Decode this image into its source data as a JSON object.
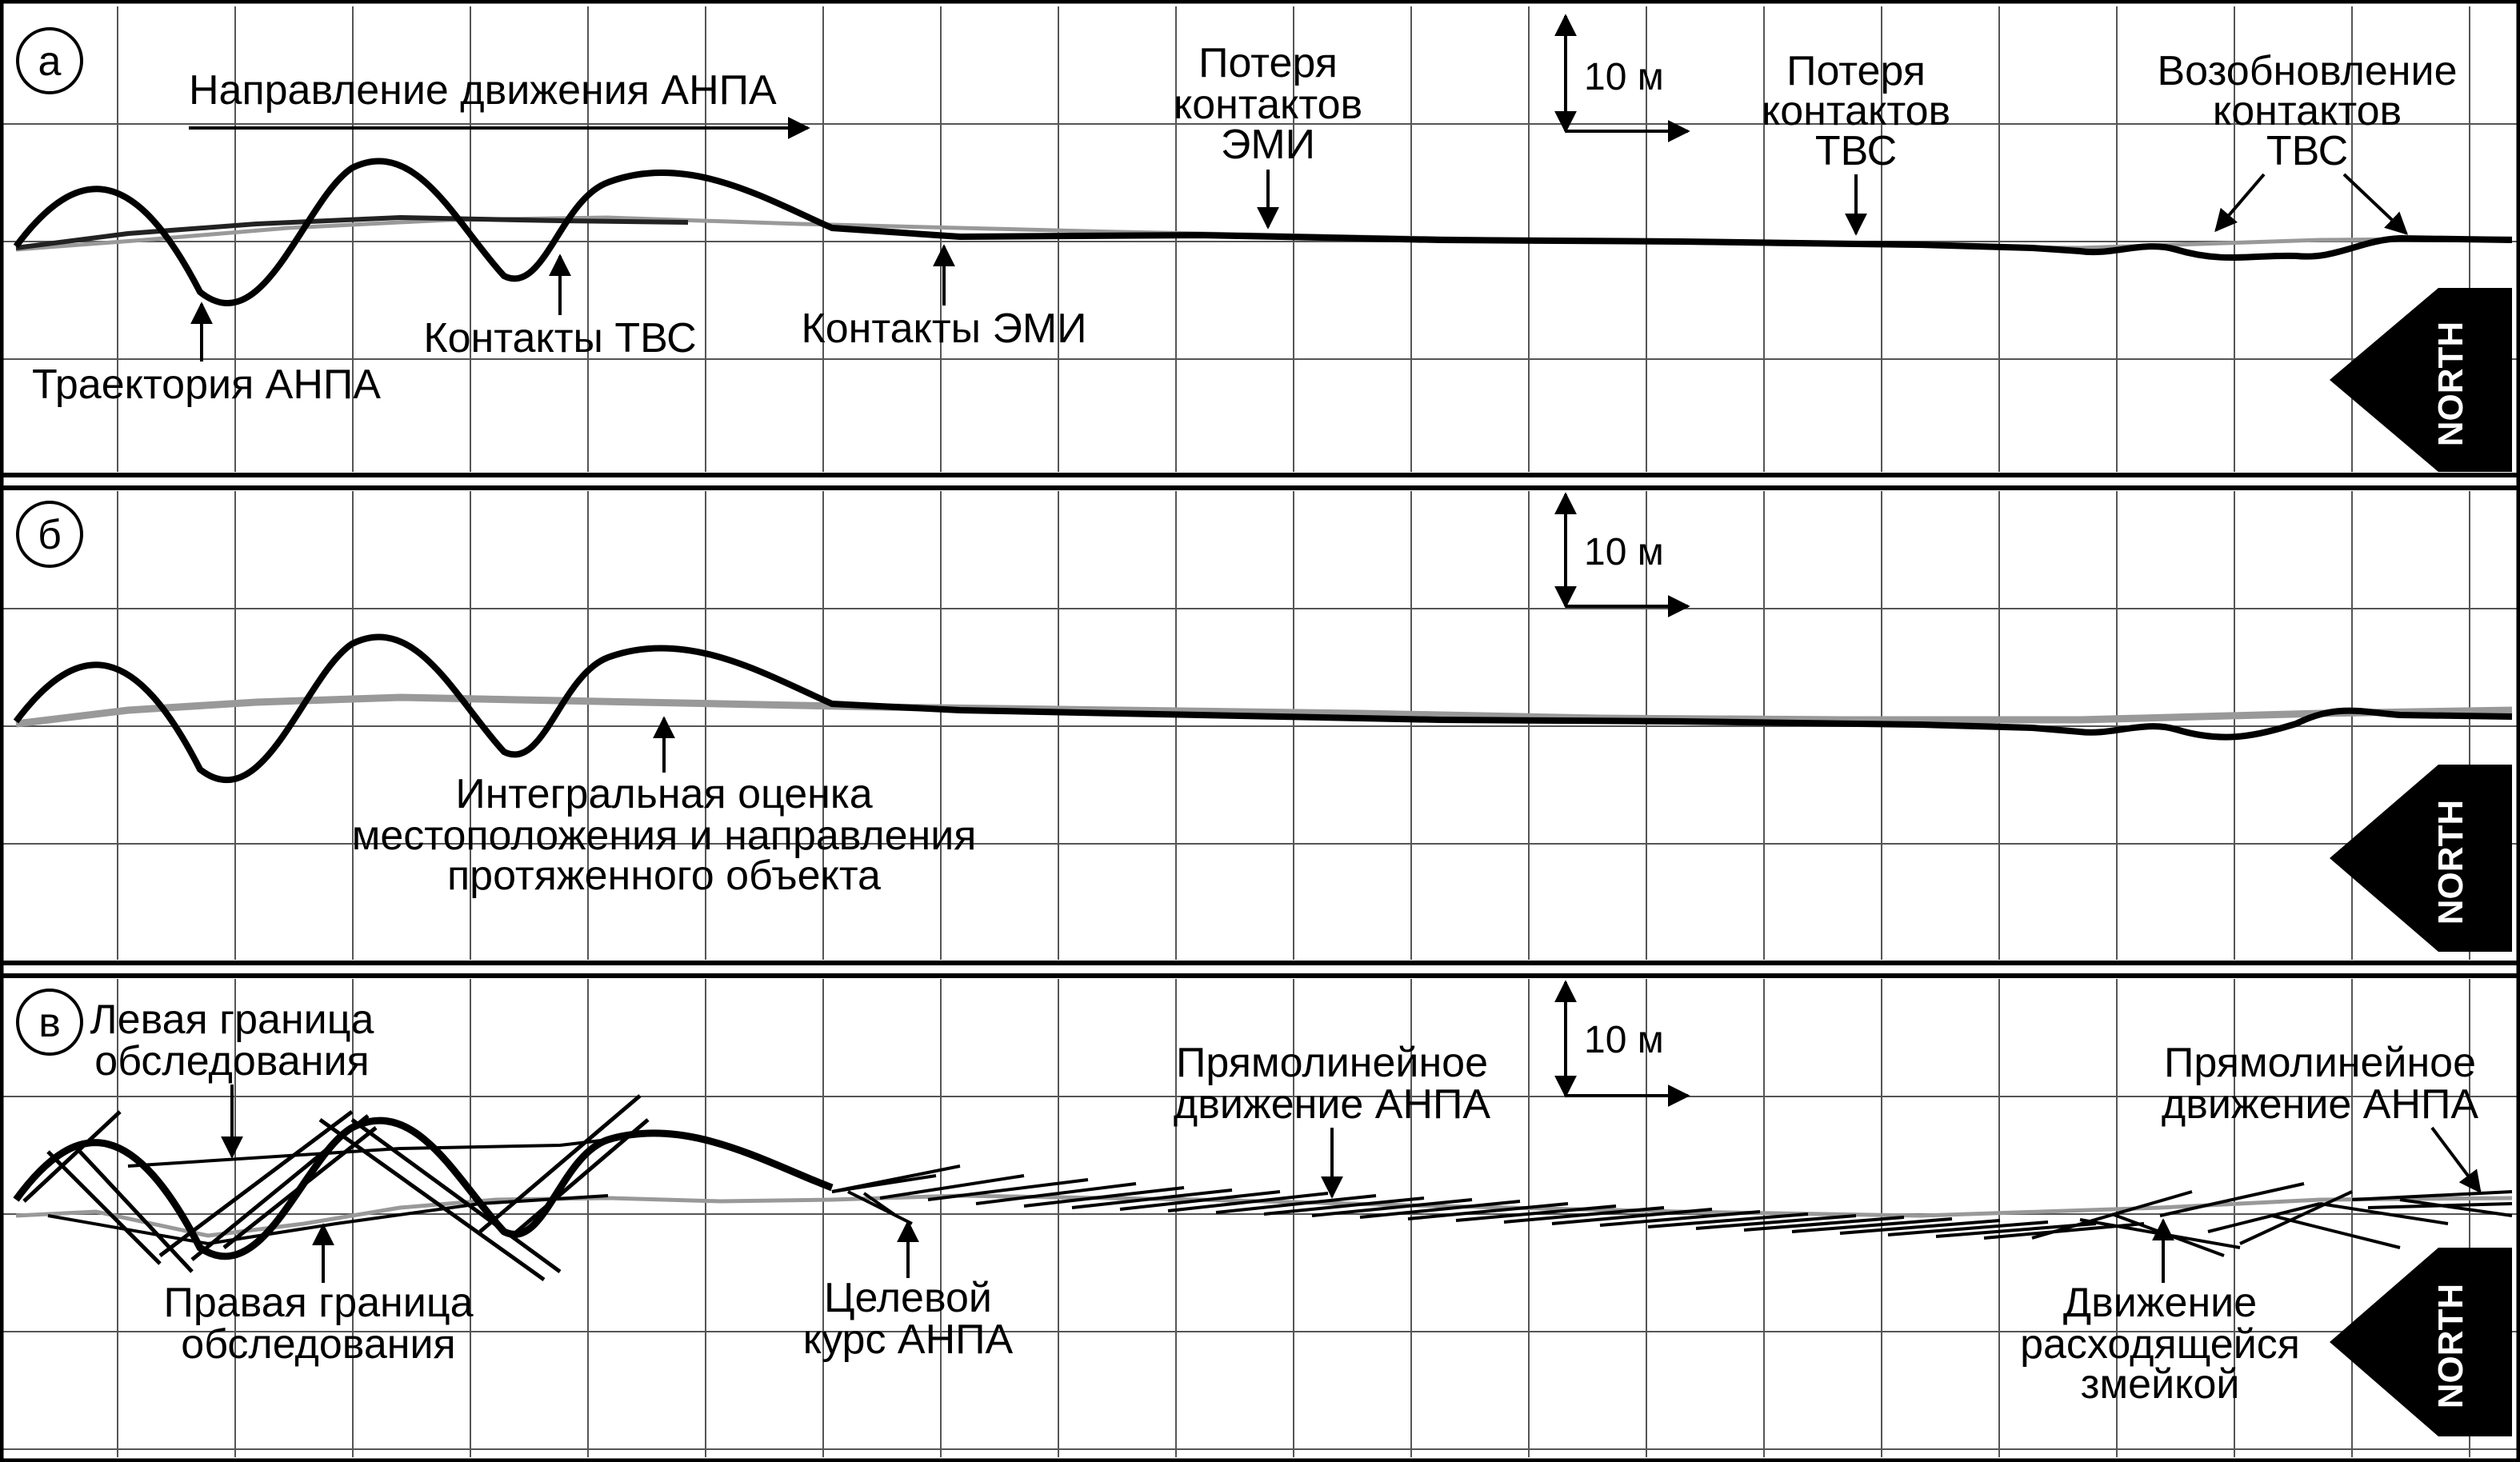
{
  "north_label": "NORTH",
  "scale_label": "10 м",
  "panels": [
    {
      "letter": "а",
      "labels": {
        "direction": "Направление движения АНПА",
        "emi_loss_1": "Потеря",
        "emi_loss_2": "контактов",
        "emi_loss_3": "ЭМИ",
        "tvs_loss_1": "Потеря",
        "tvs_loss_2": "контактов",
        "tvs_loss_3": "ТВС",
        "resume_1": "Возобновление",
        "resume_2": "контактов",
        "resume_3": "ТВС",
        "tvs_contacts": "Контакты ТВС",
        "emi_contacts": "Контакты ЭМИ",
        "trajectory": "Траектория АНПА"
      }
    },
    {
      "letter": "б",
      "labels": {
        "estimate_1": "Интегральная оценка",
        "estimate_2": "местоположения и направления",
        "estimate_3": "протяженного объекта"
      }
    },
    {
      "letter": "в",
      "labels": {
        "left_1": "Левая граница",
        "left_2": "обследования",
        "right_1": "Правая граница",
        "right_2": "обследования",
        "target_1": "Целевой",
        "target_2": "курс АНПА",
        "straight_a_1": "Прямолинейное",
        "straight_a_2": "движение АНПА",
        "straight_b_1": "Прямолинейное",
        "straight_b_2": "движение АНПА",
        "diverge_1": "Движение",
        "diverge_2": "расходящейся",
        "diverge_3": "змейкой"
      }
    }
  ]
}
